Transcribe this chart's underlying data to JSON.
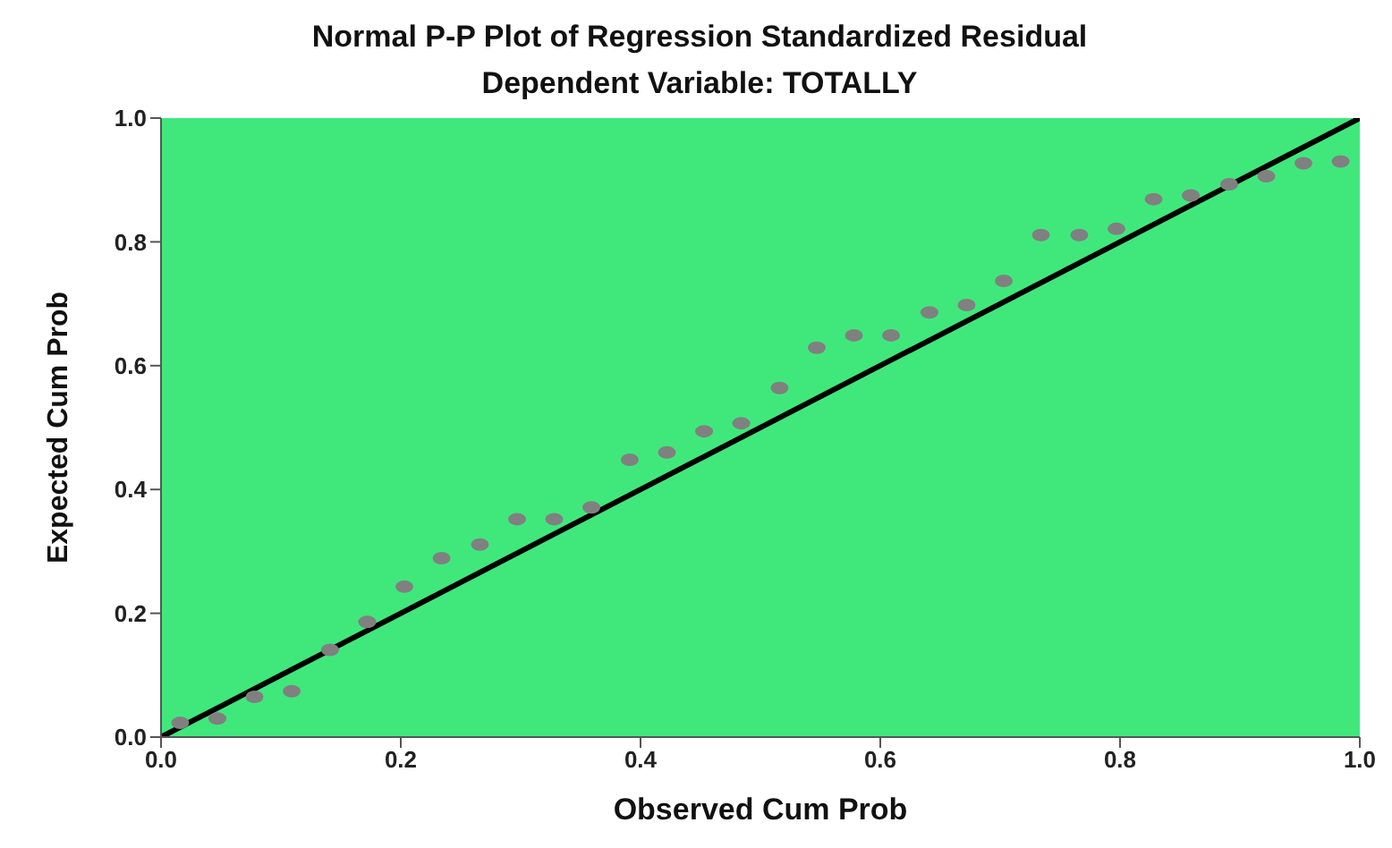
{
  "chart_data": {
    "type": "scatter",
    "title": "Normal P-P Plot of Regression Standardized Residual",
    "subtitle": "Dependent Variable: TOTALLY",
    "xlabel": "Observed Cum Prob",
    "ylabel": "Expected Cum Prob",
    "x": [
      0.016,
      0.047,
      0.078,
      0.109,
      0.141,
      0.172,
      0.203,
      0.234,
      0.266,
      0.297,
      0.328,
      0.359,
      0.391,
      0.422,
      0.453,
      0.484,
      0.516,
      0.547,
      0.578,
      0.609,
      0.641,
      0.672,
      0.703,
      0.734,
      0.766,
      0.797,
      0.828,
      0.859,
      0.891,
      0.922,
      0.953,
      0.984
    ],
    "series": [
      {
        "color": "#808080",
        "marker": "circle",
        "values": [
          0.023,
          0.03,
          0.065,
          0.074,
          0.141,
          0.186,
          0.243,
          0.289,
          0.311,
          0.352,
          0.352,
          0.371,
          0.448,
          0.46,
          0.494,
          0.507,
          0.564,
          0.629,
          0.649,
          0.649,
          0.686,
          0.698,
          0.737,
          0.811,
          0.811,
          0.821,
          0.869,
          0.875,
          0.893,
          0.906,
          0.927,
          0.93
        ]
      },
      {
        "type": "line",
        "color": "#000000",
        "marker": "none",
        "line_style": "solid",
        "x": [
          0,
          1
        ],
        "values": [
          0,
          1
        ]
      }
    ],
    "xlim": [
      0,
      1
    ],
    "ylim": [
      0,
      1
    ],
    "xticks": [
      {
        "value": 0,
        "label": "0.0"
      },
      0.2,
      0.4,
      0.6,
      0.8,
      {
        "value": 1,
        "label": "1.0"
      }
    ],
    "yticks": [
      {
        "value": 0,
        "label": "0.0"
      },
      0.2,
      0.4,
      0.6,
      0.8,
      {
        "value": 1,
        "label": "1.0"
      }
    ],
    "grid": false,
    "legend": false
  }
}
